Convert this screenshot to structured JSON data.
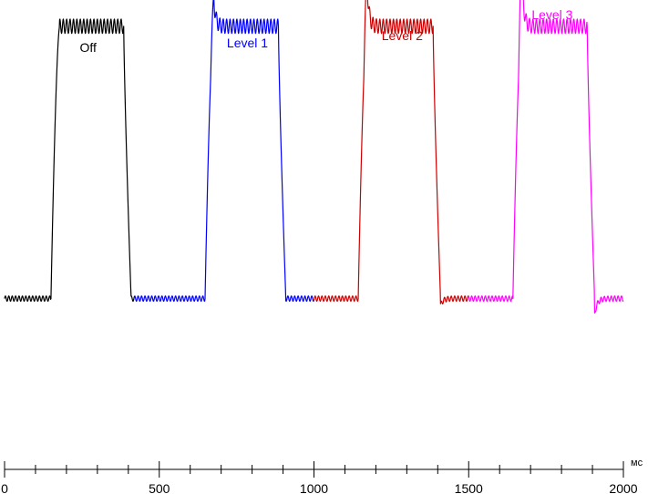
{
  "chart_data": {
    "type": "line",
    "xlabel": "мс",
    "xlim": [
      0,
      2000
    ],
    "ylim": [
      0,
      1
    ],
    "x_ticks": [
      0,
      500,
      1000,
      1500,
      2000
    ],
    "y_axis_visible": false,
    "grid": false,
    "baseline": 0.09,
    "top": 0.92,
    "series": [
      {
        "name": "Off",
        "color": "#000000",
        "x_range": [
          0,
          420
        ],
        "rise": 150,
        "fall": 385,
        "overshoot": 0,
        "undershoot": 0
      },
      {
        "name": "Level 1",
        "color": "#0000ff",
        "x_range": [
          420,
          1000
        ],
        "rise": 648,
        "fall": 885,
        "overshoot": 0.09,
        "undershoot": 0
      },
      {
        "name": "Level 2",
        "color": "#cc0000",
        "x_range": [
          1000,
          1500
        ],
        "rise": 1143,
        "fall": 1385,
        "overshoot": 0.15,
        "undershoot": 0.02
      },
      {
        "name": "Level 3",
        "color": "#ff00ff",
        "x_range": [
          1500,
          2000
        ],
        "rise": 1643,
        "fall": 1883,
        "overshoot": 0.19,
        "undershoot": 0.05
      }
    ]
  }
}
